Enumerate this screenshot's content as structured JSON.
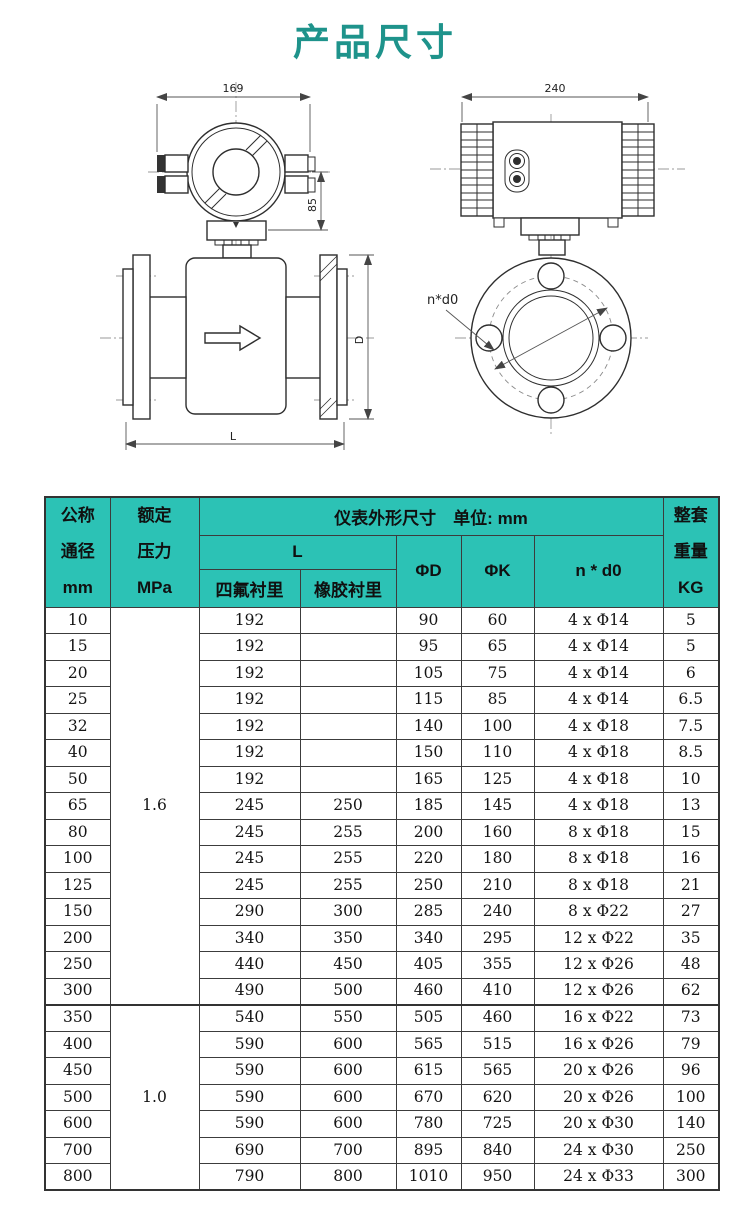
{
  "title": "产品尺寸",
  "colors": {
    "accent": "#1E938B",
    "table_header": "#2CC2B5",
    "table_border": "#3C3C3C"
  },
  "drawings": {
    "side_view": {
      "converter_width": "169",
      "converter_height": "85",
      "length_label": "L",
      "diameter_label": "D"
    },
    "front_view": {
      "converter_width": "240",
      "bolt_label": "n*d0"
    }
  },
  "table": {
    "header": {
      "col_dn": "公称\n通径\nmm",
      "col_pressure": "额定\n压力\nMPa",
      "group_dimensions": "仪表外形尺寸　单位: mm",
      "col_L": "L",
      "col_ptfe": "四氟衬里",
      "col_rubber": "橡胶衬里",
      "col_d": "ΦD",
      "col_k": "ΦK",
      "col_nd0": "n * d0",
      "col_weight": "整套\n重量\nKG"
    },
    "groups": [
      {
        "pressure": "1.6",
        "rows": [
          [
            "10",
            "192",
            "",
            "90",
            "60",
            "4 x Φ14",
            "5"
          ],
          [
            "15",
            "192",
            "",
            "95",
            "65",
            "4 x Φ14",
            "5"
          ],
          [
            "20",
            "192",
            "",
            "105",
            "75",
            "4 x Φ14",
            "6"
          ],
          [
            "25",
            "192",
            "",
            "115",
            "85",
            "4 x Φ14",
            "6.5"
          ],
          [
            "32",
            "192",
            "",
            "140",
            "100",
            "4 x Φ18",
            "7.5"
          ],
          [
            "40",
            "192",
            "",
            "150",
            "110",
            "4 x Φ18",
            "8.5"
          ],
          [
            "50",
            "192",
            "",
            "165",
            "125",
            "4 x Φ18",
            "10"
          ],
          [
            "65",
            "245",
            "250",
            "185",
            "145",
            "4 x Φ18",
            "13"
          ],
          [
            "80",
            "245",
            "255",
            "200",
            "160",
            "8 x Φ18",
            "15"
          ],
          [
            "100",
            "245",
            "255",
            "220",
            "180",
            "8 x Φ18",
            "16"
          ],
          [
            "125",
            "245",
            "255",
            "250",
            "210",
            "8 x Φ18",
            "21"
          ],
          [
            "150",
            "290",
            "300",
            "285",
            "240",
            "8 x Φ22",
            "27"
          ],
          [
            "200",
            "340",
            "350",
            "340",
            "295",
            "12 x Φ22",
            "35"
          ],
          [
            "250",
            "440",
            "450",
            "405",
            "355",
            "12 x Φ26",
            "48"
          ],
          [
            "300",
            "490",
            "500",
            "460",
            "410",
            "12 x Φ26",
            "62"
          ]
        ]
      },
      {
        "pressure": "1.0",
        "rows": [
          [
            "350",
            "540",
            "550",
            "505",
            "460",
            "16 x Φ22",
            "73"
          ],
          [
            "400",
            "590",
            "600",
            "565",
            "515",
            "16 x Φ26",
            "79"
          ],
          [
            "450",
            "590",
            "600",
            "615",
            "565",
            "20 x Φ26",
            "96"
          ],
          [
            "500",
            "590",
            "600",
            "670",
            "620",
            "20 x Φ26",
            "100"
          ],
          [
            "600",
            "590",
            "600",
            "780",
            "725",
            "20 x Φ30",
            "140"
          ],
          [
            "700",
            "690",
            "700",
            "895",
            "840",
            "24 x Φ30",
            "250"
          ],
          [
            "800",
            "790",
            "800",
            "1010",
            "950",
            "24 x Φ33",
            "300"
          ]
        ]
      }
    ]
  }
}
